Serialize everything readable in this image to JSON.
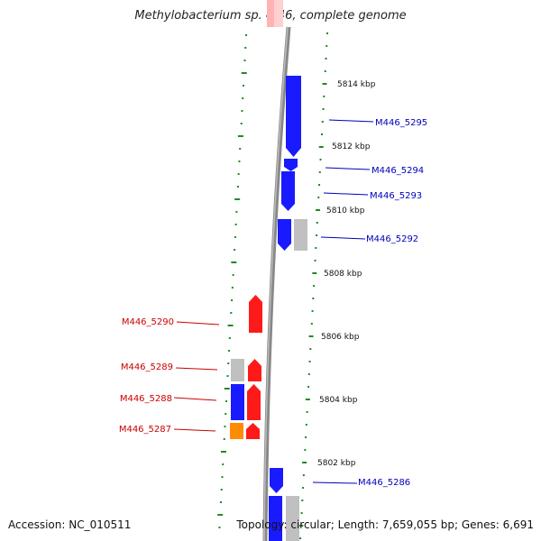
{
  "title": "Methylobacterium sp. 4-46, complete genome",
  "accession": "Accession: NC_010511",
  "summary": "Topology: circular; Length: 7,659,055 bp; Genes: 6,691",
  "colors": {
    "forward_cds": "#ff1a1a",
    "reverse_cds": "#1a1aff",
    "rna": "#ff8c00",
    "other": "#c0c0c0",
    "backbone": "#888888",
    "tick": "#228b22",
    "label_forward": "#cc0000",
    "label_reverse": "#0000bb"
  },
  "scale_labels": [
    "5814 kbp",
    "5812 kbp",
    "5810 kbp",
    "5808 kbp",
    "5806 kbp",
    "5804 kbp",
    "5802 kbp"
  ],
  "gene_labels_reverse": [
    "M446_5295",
    "M446_5294",
    "M446_5293",
    "M446_5292",
    "M446_5286"
  ],
  "gene_labels_forward": [
    "M446_5290",
    "M446_5289",
    "M446_5288",
    "M446_5287"
  ]
}
